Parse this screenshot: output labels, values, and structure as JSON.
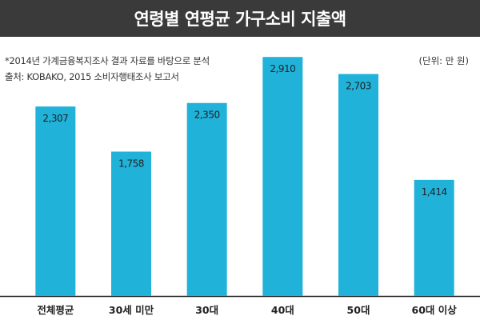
{
  "title": "연령별 연평균 가구소비 지출액",
  "notes": {
    "line1": "*2014년 가계금융복지조사 결과 자료를 바탕으로 분석",
    "line2": "출처: KOBAKO, 2015 소비자행태조사 보고서",
    "unit": "(단위: 만 원)"
  },
  "colors": {
    "bar": "#20b2d9",
    "title_bg": "#3a3a3a",
    "axis": "#222222"
  },
  "chart_data": {
    "type": "bar",
    "title": "연령별 연평균 가구소비 지출액",
    "xlabel": "",
    "ylabel": "",
    "unit": "만 원",
    "categories": [
      "전체평균",
      "30세 미만",
      "30대",
      "40대",
      "50대",
      "60대 이상"
    ],
    "values": [
      2307,
      1758,
      2350,
      2910,
      2703,
      1414
    ],
    "value_labels": [
      "2,307",
      "1,758",
      "2,350",
      "2,910",
      "2,703",
      "1,414"
    ],
    "ylim": [
      0,
      3000
    ],
    "grid": false,
    "legend": "none"
  }
}
